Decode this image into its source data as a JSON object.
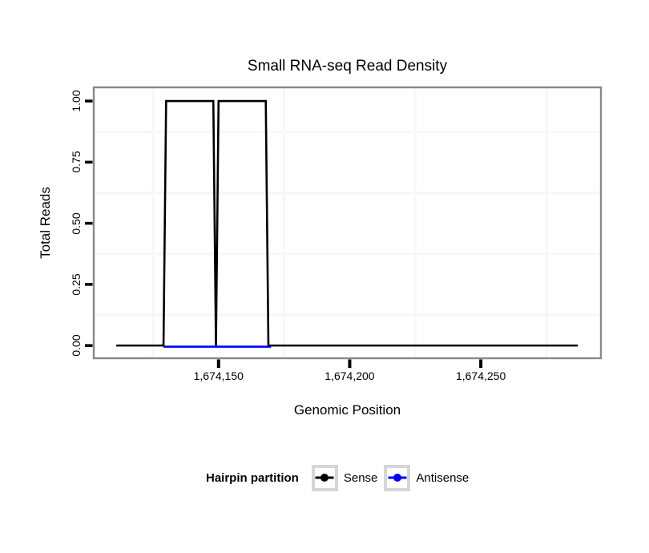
{
  "chart_data": {
    "type": "line",
    "title": "Small RNA-seq Read Density",
    "xlabel": "Genomic Position",
    "ylabel": "Total Reads",
    "xlim": [
      1674102.4,
      1674295.8
    ],
    "ylim": [
      -0.052,
      1.056
    ],
    "x_ticks": [
      {
        "value": 1674150,
        "label": "1,674,150"
      },
      {
        "value": 1674200,
        "label": "1,674,200"
      },
      {
        "value": 1674250,
        "label": "1,674,250"
      }
    ],
    "y_ticks": [
      {
        "value": 0.0,
        "label": "0.00"
      },
      {
        "value": 0.25,
        "label": "0.25"
      },
      {
        "value": 0.5,
        "label": "0.50"
      },
      {
        "value": 0.75,
        "label": "0.75"
      },
      {
        "value": 1.0,
        "label": "1.00"
      }
    ],
    "x_minor_gridlines": [
      1674125,
      1674175,
      1674225,
      1674275
    ],
    "y_minor_gridlines": [
      0.125,
      0.375,
      0.625,
      0.875
    ],
    "grid": "minor-only",
    "legend_position": "bottom",
    "series": [
      {
        "name": "Sense",
        "color": "#000000",
        "points": [
          [
            1674111,
            0
          ],
          [
            1674129,
            0
          ],
          [
            1674130,
            1
          ],
          [
            1674148,
            1
          ],
          [
            1674149,
            0
          ],
          [
            1674150,
            1
          ],
          [
            1674168,
            1
          ],
          [
            1674169,
            0
          ],
          [
            1674287,
            0
          ]
        ]
      },
      {
        "name": "Antisense",
        "color": "#0000ff",
        "points": [
          [
            1674129,
            0
          ],
          [
            1674170,
            0
          ]
        ]
      }
    ],
    "legend": {
      "title": "Hairpin partition",
      "entries": [
        {
          "label": "Sense",
          "color": "#000000"
        },
        {
          "label": "Antisense",
          "color": "#0000ff"
        }
      ]
    },
    "colors": {
      "grid": "#f7f7f7",
      "panel_border": "#888888",
      "tick": "#000000",
      "legend_key_border": "#d6d6d6"
    }
  }
}
